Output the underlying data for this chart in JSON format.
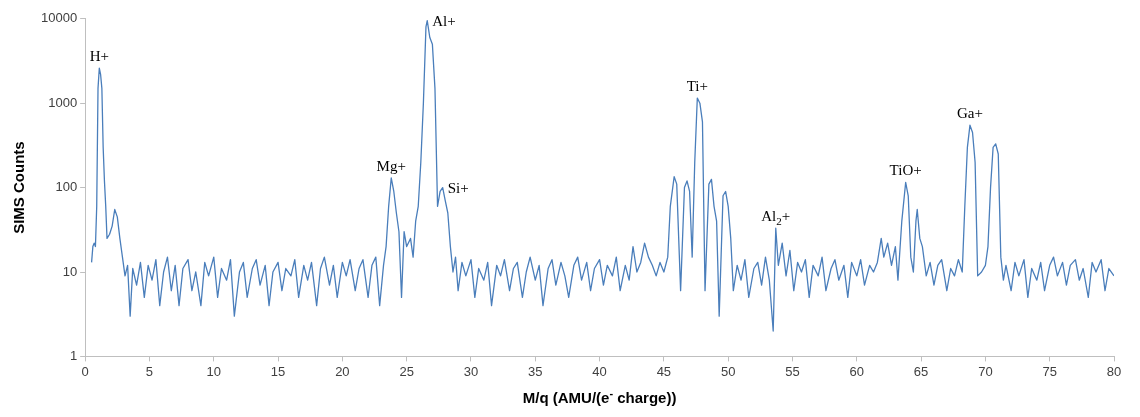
{
  "chart_data": {
    "type": "line",
    "xlabel": "M/q (AMU/(e$^{-}$ charge))",
    "ylabel": "SIMS Counts",
    "log": "y",
    "grid": false,
    "legend": false,
    "marker": "none",
    "line_style": "solid",
    "xlim": [
      0,
      80
    ],
    "xticks": [
      0,
      5,
      10,
      15,
      20,
      25,
      30,
      35,
      40,
      45,
      50,
      55,
      60,
      65,
      70,
      75,
      80
    ],
    "ylim": [
      1,
      10000
    ],
    "yticks": [
      1,
      10,
      100,
      1000,
      10000
    ],
    "annotations": [
      {
        "text": "H+",
        "x": 1.1,
        "y": 2600
      },
      {
        "text": "Mg+",
        "x": 23.8,
        "y": 130
      },
      {
        "text": "Al+",
        "x": 26.6,
        "y": 9500
      },
      {
        "text": "Si+",
        "x": 27.8,
        "y": 100
      },
      {
        "text": "Ti+",
        "x": 47.6,
        "y": 1150
      },
      {
        "text": "Al$_{2}$+",
        "x": 53.7,
        "y": 33
      },
      {
        "text": "TiO+",
        "x": 63.8,
        "y": 115
      },
      {
        "text": "Ga+",
        "x": 68.8,
        "y": 550
      }
    ],
    "series": [
      {
        "color": "#4a7ebb",
        "x": [
          0.5,
          0.6,
          0.7,
          0.8,
          0.9,
          1.0,
          1.1,
          1.2,
          1.3,
          1.4,
          1.5,
          1.6,
          1.7,
          1.9,
          2.1,
          2.3,
          2.5,
          2.7,
          2.9,
          3.1,
          3.3,
          3.5,
          3.7,
          4.0,
          4.3,
          4.6,
          4.9,
          5.2,
          5.5,
          5.8,
          6.1,
          6.4,
          6.7,
          7.0,
          7.3,
          7.6,
          8.0,
          8.3,
          8.6,
          9.0,
          9.3,
          9.6,
          10.0,
          10.3,
          10.6,
          11.0,
          11.3,
          11.6,
          12.0,
          12.3,
          12.6,
          13.0,
          13.3,
          13.6,
          14.0,
          14.3,
          14.6,
          15.0,
          15.3,
          15.6,
          16.0,
          16.3,
          16.6,
          17.0,
          17.3,
          17.6,
          18.0,
          18.3,
          18.6,
          19.0,
          19.3,
          19.6,
          20.0,
          20.3,
          20.6,
          21.0,
          21.3,
          21.6,
          22.0,
          22.3,
          22.6,
          22.9,
          23.2,
          23.4,
          23.6,
          23.8,
          24.0,
          24.2,
          24.4,
          24.6,
          24.8,
          25.0,
          25.3,
          25.5,
          25.7,
          25.9,
          26.1,
          26.3,
          26.5,
          26.6,
          26.8,
          27.0,
          27.2,
          27.4,
          27.6,
          27.8,
          28.0,
          28.2,
          28.4,
          28.6,
          28.8,
          29.0,
          29.3,
          29.6,
          30.0,
          30.3,
          30.6,
          31.0,
          31.3,
          31.6,
          32.0,
          32.3,
          32.6,
          33.0,
          33.3,
          33.6,
          34.0,
          34.3,
          34.6,
          35.0,
          35.3,
          35.6,
          36.0,
          36.3,
          36.6,
          37.0,
          37.3,
          37.6,
          38.0,
          38.3,
          38.6,
          39.0,
          39.3,
          39.6,
          40.0,
          40.3,
          40.6,
          41.0,
          41.3,
          41.6,
          42.0,
          42.3,
          42.6,
          42.9,
          43.2,
          43.5,
          43.8,
          44.1,
          44.4,
          44.7,
          45.0,
          45.3,
          45.5,
          45.8,
          46.0,
          46.3,
          46.6,
          46.8,
          47.0,
          47.2,
          47.4,
          47.6,
          47.8,
          48.0,
          48.2,
          48.5,
          48.7,
          48.9,
          49.1,
          49.3,
          49.6,
          49.8,
          50.0,
          50.2,
          50.4,
          50.7,
          51.0,
          51.3,
          51.6,
          52.0,
          52.3,
          52.6,
          52.9,
          53.2,
          53.5,
          53.7,
          53.9,
          54.2,
          54.5,
          54.8,
          55.1,
          55.4,
          55.7,
          56.0,
          56.3,
          56.6,
          57.0,
          57.3,
          57.6,
          58.0,
          58.3,
          58.6,
          59.0,
          59.3,
          59.6,
          60.0,
          60.3,
          60.6,
          61.0,
          61.3,
          61.6,
          61.9,
          62.1,
          62.4,
          62.7,
          63.0,
          63.2,
          63.5,
          63.8,
          64.0,
          64.2,
          64.4,
          64.6,
          64.7,
          64.9,
          65.1,
          65.4,
          65.7,
          66.0,
          66.3,
          66.6,
          67.0,
          67.3,
          67.6,
          67.9,
          68.2,
          68.4,
          68.6,
          68.8,
          69.0,
          69.2,
          69.4,
          69.7,
          70.0,
          70.2,
          70.4,
          70.6,
          70.8,
          71.0,
          71.2,
          71.4,
          71.6,
          72.0,
          72.3,
          72.6,
          73.0,
          73.3,
          73.6,
          74.0,
          74.3,
          74.6,
          75.0,
          75.3,
          75.6,
          76.0,
          76.3,
          76.6,
          77.0,
          77.3,
          77.6,
          78.0,
          78.3,
          78.6,
          79.0,
          79.3,
          79.6,
          80.0
        ],
        "values": [
          13,
          20,
          22,
          20,
          60,
          1500,
          2600,
          2200,
          1500,
          300,
          120,
          60,
          25,
          28,
          35,
          55,
          45,
          25,
          15,
          9,
          12,
          3,
          11,
          7,
          13,
          5,
          12,
          8,
          14,
          4,
          10,
          15,
          6,
          12,
          4,
          11,
          14,
          6,
          10,
          4,
          13,
          9,
          15,
          5,
          11,
          8,
          14,
          3,
          10,
          13,
          5,
          11,
          14,
          7,
          12,
          4,
          10,
          13,
          6,
          11,
          9,
          14,
          5,
          12,
          8,
          13,
          4,
          11,
          15,
          7,
          12,
          5,
          13,
          9,
          14,
          6,
          11,
          14,
          5,
          12,
          15,
          4,
          12,
          20,
          60,
          130,
          90,
          50,
          30,
          5,
          30,
          20,
          25,
          15,
          40,
          60,
          200,
          1000,
          8000,
          9500,
          6000,
          5000,
          1500,
          60,
          90,
          100,
          70,
          50,
          20,
          10,
          15,
          6,
          13,
          9,
          14,
          5,
          11,
          8,
          13,
          4,
          12,
          9,
          14,
          6,
          11,
          13,
          5,
          10,
          15,
          8,
          12,
          4,
          11,
          14,
          7,
          13,
          9,
          5,
          12,
          15,
          8,
          13,
          6,
          11,
          14,
          7,
          12,
          9,
          15,
          6,
          12,
          8,
          20,
          10,
          13,
          22,
          15,
          12,
          9,
          13,
          10,
          15,
          60,
          135,
          110,
          6,
          100,
          120,
          90,
          15,
          200,
          1150,
          1000,
          600,
          6,
          110,
          125,
          60,
          40,
          3,
          80,
          90,
          60,
          25,
          6,
          12,
          8,
          14,
          5,
          11,
          13,
          7,
          15,
          8,
          2,
          33,
          12,
          22,
          9,
          18,
          6,
          13,
          10,
          14,
          5,
          12,
          9,
          15,
          6,
          11,
          14,
          8,
          12,
          5,
          13,
          9,
          14,
          7,
          12,
          10,
          13,
          25,
          15,
          22,
          12,
          20,
          8,
          40,
          115,
          80,
          15,
          10,
          40,
          55,
          25,
          20,
          9,
          13,
          7,
          12,
          14,
          6,
          11,
          9,
          14,
          10,
          60,
          300,
          550,
          450,
          200,
          9,
          10,
          12,
          20,
          100,
          300,
          330,
          250,
          15,
          8,
          12,
          6,
          13,
          9,
          14,
          5,
          11,
          8,
          13,
          6,
          12,
          15,
          9,
          13,
          7,
          12,
          14,
          8,
          11,
          5,
          13,
          10,
          14,
          6,
          11,
          9
        ]
      }
    ]
  }
}
